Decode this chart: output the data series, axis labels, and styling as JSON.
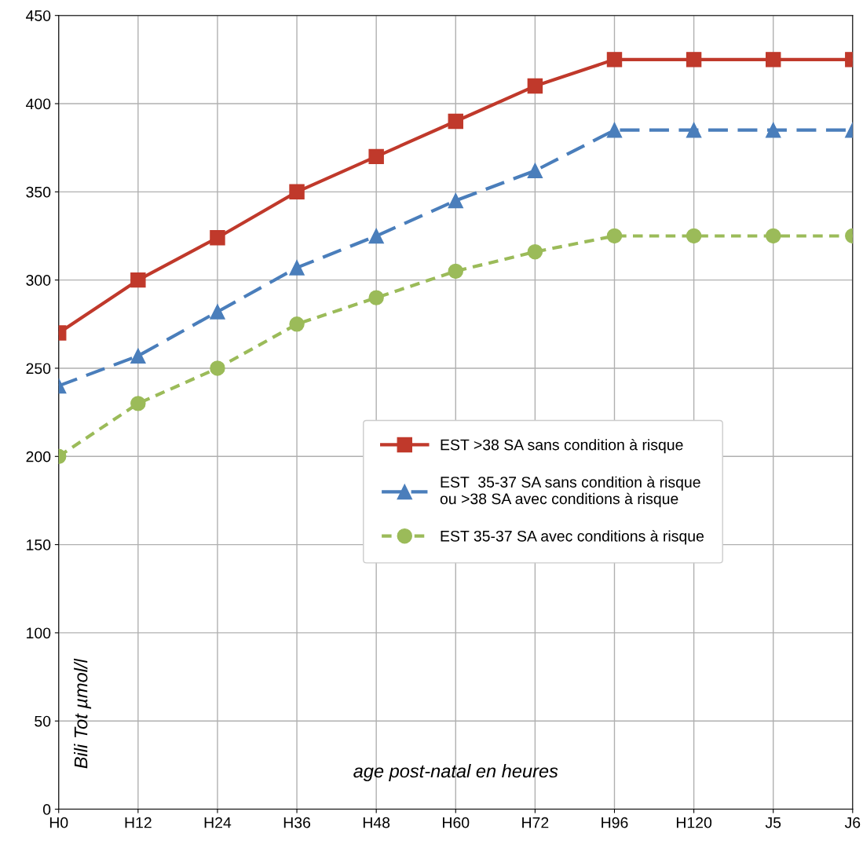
{
  "chart_data": {
    "type": "line",
    "xlabel": "age post-natal en heures",
    "ylabel": "Bili Tot µmol/l",
    "categories": [
      "H0",
      "H12",
      "H24",
      "H36",
      "H48",
      "H60",
      "H72",
      "H96",
      "H120",
      "J5",
      "J6"
    ],
    "series": [
      {
        "name": "EST >38 SA sans condition à risque",
        "color": "#c0392b",
        "marker": "square",
        "line_style": "solid",
        "values": [
          270,
          300,
          324,
          350,
          370,
          390,
          410,
          425,
          425,
          425,
          425
        ]
      },
      {
        "name": "EST  35-37 SA sans condition à risque\nou >38 SA avec conditions à risque",
        "color": "#4a7ebb",
        "marker": "triangle",
        "line_style": "dashed",
        "values": [
          240,
          257,
          282,
          307,
          325,
          345,
          362,
          385,
          385,
          385,
          385
        ]
      },
      {
        "name": "EST 35-37 SA avec conditions à risque",
        "color": "#9bbb59",
        "marker": "circle",
        "line_style": "dotted",
        "values": [
          200,
          230,
          250,
          275,
          290,
          305,
          316,
          325,
          325,
          325,
          325
        ]
      }
    ],
    "ylim": [
      0,
      450
    ],
    "yticks": [
      0,
      50,
      100,
      150,
      200,
      250,
      300,
      350,
      400,
      450
    ],
    "grid": true,
    "legend": "center right"
  }
}
